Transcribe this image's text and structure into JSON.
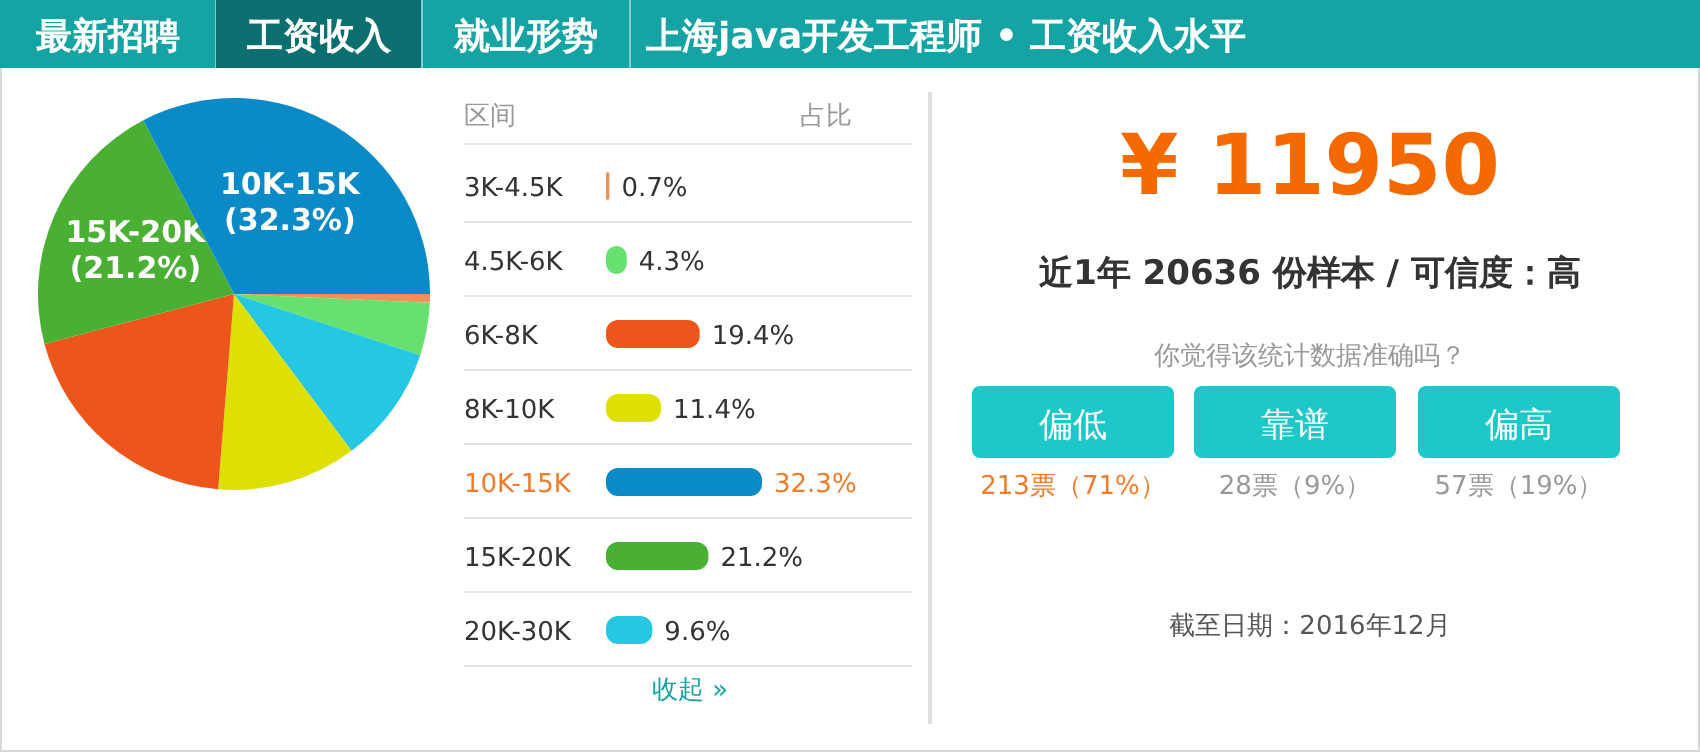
{
  "chart_data": [
    {
      "type": "pie",
      "title": "上海java开发工程师 • 工资收入水平",
      "annotations": [
        "最新招聘",
        "工资收入",
        "就业形势"
      ],
      "categories": [
        null,
        null,
        null,
        null,
        null,
        "15K-20K",
        "10K-15K"
      ],
      "values": [
        0.7,
        4.3,
        9.6,
        11.4,
        19.4,
        21.2,
        32.3
      ],
      "colors": [
        "#f0905a",
        "#66e06e",
        "#24c8e2",
        "#dde000",
        "#ec561b",
        "#4ab034",
        "#0a8ac6"
      ],
      "value_labels": [
        null,
        null,
        null,
        null,
        null,
        "(21.2%)",
        "(32.3%)"
      ]
    },
    {
      "type": "bar",
      "orientation": "horizontal",
      "annotations": [
        "区间",
        "占比",
        "收起 »"
      ],
      "categories": [
        "3K-4.5K",
        "4.5K-6K",
        "6K-8K",
        "8K-10K",
        "10K-15K",
        "15K-20K",
        "20K-30K"
      ],
      "values": [
        0.7,
        4.3,
        19.4,
        11.4,
        32.3,
        21.2,
        9.6
      ],
      "colors": [
        "#f0905a",
        "#66e06e",
        "#ec561b",
        "#dde000",
        "#0a8ac6",
        "#4ab034",
        "#24c8e2"
      ],
      "value_labels": [
        "0.7%",
        "4.3%",
        "19.4%",
        "11.4%",
        "32.3%",
        "21.2%",
        "9.6%"
      ]
    },
    {
      "type": "other",
      "title": "¥ 11950",
      "subtitle": "近1年 20636 份样本 / 可信度：高",
      "annotations": [
        "你觉得该统计数据准确吗？",
        "偏低",
        "靠谱",
        "偏高",
        "213票（71%）",
        "28票（9%）",
        "57票（19%）",
        "截至日期：2016年12月"
      ]
    }
  ]
}
